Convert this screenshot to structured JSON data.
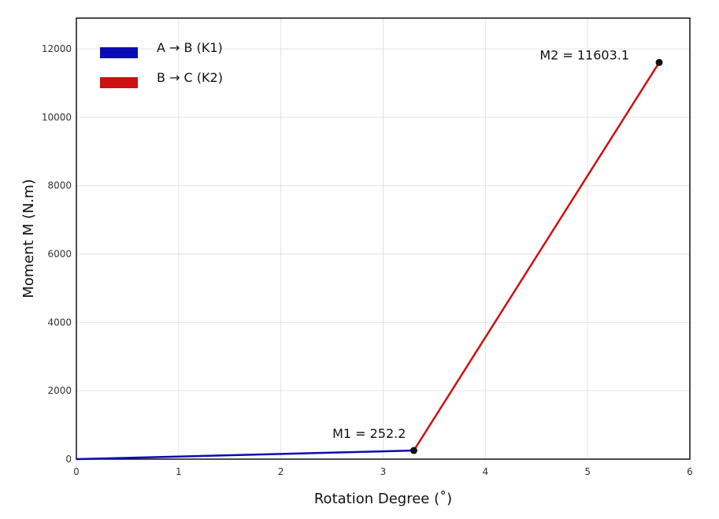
{
  "chart_data": {
    "type": "line",
    "xlabel": "Rotation Degree (˚)",
    "ylabel": "Moment M (N.m)",
    "xlim": [
      0,
      6
    ],
    "ylim": [
      0,
      12900
    ],
    "xticks": [
      0,
      1,
      2,
      3,
      4,
      5,
      6
    ],
    "yticks": [
      0,
      2000,
      4000,
      6000,
      8000,
      10000,
      12000
    ],
    "grid": true,
    "legend_position": "top-left",
    "series": [
      {
        "name": "A → B (K1)",
        "color": "#0b0bb5",
        "x": [
          0,
          3.3
        ],
        "y": [
          0,
          252.2
        ]
      },
      {
        "name": "B → C (K2)",
        "color": "#cc1111",
        "x": [
          3.3,
          5.7
        ],
        "y": [
          252.2,
          11603.1
        ]
      }
    ],
    "points": [
      {
        "x": 3.3,
        "y": 252.2,
        "label": "M1 = 252.2"
      },
      {
        "x": 5.7,
        "y": 11603.1,
        "label": "M2 = 11603.1"
      }
    ]
  }
}
